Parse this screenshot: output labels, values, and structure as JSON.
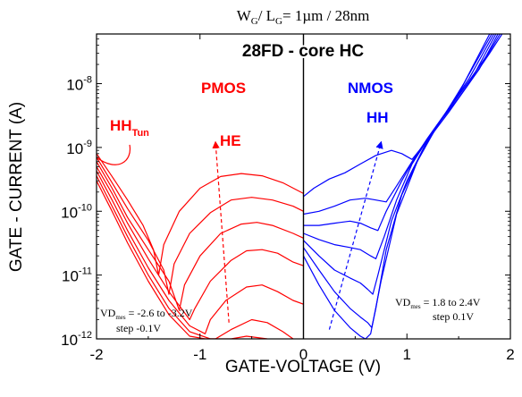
{
  "chart_data": {
    "type": "line",
    "title": {
      "main": "W",
      "sub1": "G",
      "mid": "/ L",
      "sub2": "G",
      "rest": "= 1µm / 28nm"
    },
    "xlabel": "GATE-VOLTAGE (V)",
    "ylabel": "GATE - CURRENT (A)",
    "xlim": [
      -2,
      2
    ],
    "ylim": [
      1e-12,
      6e-08
    ],
    "yscale": "log",
    "grid": false,
    "x_ticks": [
      {
        "value": -2,
        "label": "-2"
      },
      {
        "value": -1,
        "label": "-1"
      },
      {
        "value": 0,
        "label": "0"
      },
      {
        "value": 1,
        "label": "1"
      },
      {
        "value": 2,
        "label": "2"
      }
    ],
    "y_ticks": [
      {
        "exp": -12,
        "base": "10",
        "sup": "-12"
      },
      {
        "exp": -11,
        "base": "10",
        "sup": "-11"
      },
      {
        "exp": -10,
        "base": "10",
        "sup": "-10"
      },
      {
        "exp": -9,
        "base": "10",
        "sup": "-9"
      },
      {
        "exp": -8,
        "base": "10",
        "sup": "-8"
      }
    ],
    "colors": {
      "pmos": "#ff0000",
      "nmos": "#0000ff",
      "axis": "#000000"
    },
    "annotations": {
      "device": "28FD - core HC",
      "pmos": "PMOS",
      "nmos": "NMOS",
      "hh_tun": "HH",
      "hh_tun_sub": "Tun",
      "he": "HE",
      "hh": "HH",
      "pmos_box_1_pre": "VD",
      "pmos_box_1_sub": "mes",
      "pmos_box_1_post": " = -2.6 to -3.2V",
      "pmos_box_2": "step -0.1V",
      "nmos_box_1_pre": "VD",
      "nmos_box_1_sub": "mes",
      "nmos_box_1_post": " = 1.8 to 2.4V",
      "nmos_box_2": "step 0.1V"
    },
    "series": [
      {
        "device": "PMOS",
        "points": [
          [
            -2.0,
            8e-10
          ],
          [
            -1.85,
            3.5e-10
          ],
          [
            -1.7,
            1.5e-10
          ],
          [
            -1.55,
            6e-11
          ],
          [
            -1.45,
            2.5e-11
          ],
          [
            -1.4,
            1e-11
          ],
          [
            -1.35,
            3e-11
          ],
          [
            -1.2,
            1e-10
          ],
          [
            -1.0,
            2.3e-10
          ],
          [
            -0.8,
            3.5e-10
          ],
          [
            -0.6,
            3.9e-10
          ],
          [
            -0.4,
            3.6e-10
          ],
          [
            -0.2,
            2.8e-10
          ],
          [
            0.0,
            1.9e-10
          ]
        ]
      },
      {
        "device": "PMOS",
        "points": [
          [
            -2.0,
            7e-10
          ],
          [
            -1.85,
            2.8e-10
          ],
          [
            -1.7,
            1.1e-10
          ],
          [
            -1.5,
            3.5e-11
          ],
          [
            -1.35,
            1.2e-11
          ],
          [
            -1.3,
            5e-12
          ],
          [
            -1.25,
            1.5e-11
          ],
          [
            -1.1,
            4.5e-11
          ],
          [
            -0.9,
            9.5e-11
          ],
          [
            -0.7,
            1.5e-10
          ],
          [
            -0.5,
            1.65e-10
          ],
          [
            -0.3,
            1.5e-10
          ],
          [
            -0.1,
            1.2e-10
          ],
          [
            0.0,
            1e-10
          ]
        ]
      },
      {
        "device": "PMOS",
        "points": [
          [
            -2.0,
            6e-10
          ],
          [
            -1.85,
            2.3e-10
          ],
          [
            -1.7,
            8e-11
          ],
          [
            -1.5,
            2.5e-11
          ],
          [
            -1.3,
            8e-12
          ],
          [
            -1.2,
            2.8e-12
          ],
          [
            -1.15,
            7e-12
          ],
          [
            -1.0,
            2e-11
          ],
          [
            -0.8,
            4.5e-11
          ],
          [
            -0.6,
            6.3e-11
          ],
          [
            -0.45,
            6.7e-11
          ],
          [
            -0.3,
            6e-11
          ],
          [
            -0.1,
            4.5e-11
          ],
          [
            0.0,
            3.8e-11
          ]
        ]
      },
      {
        "device": "PMOS",
        "points": [
          [
            -2.0,
            5e-10
          ],
          [
            -1.85,
            1.9e-10
          ],
          [
            -1.7,
            6.5e-11
          ],
          [
            -1.5,
            1.8e-11
          ],
          [
            -1.3,
            5.5e-12
          ],
          [
            -1.1,
            2e-12
          ],
          [
            -1.05,
            3e-12
          ],
          [
            -0.9,
            8e-12
          ],
          [
            -0.7,
            1.7e-11
          ],
          [
            -0.55,
            2.4e-11
          ],
          [
            -0.4,
            2.5e-11
          ],
          [
            -0.25,
            2.2e-11
          ],
          [
            -0.1,
            1.6e-11
          ],
          [
            0.0,
            1.4e-11
          ]
        ]
      },
      {
        "device": "PMOS",
        "points": [
          [
            -2.0,
            4.3e-10
          ],
          [
            -1.85,
            1.5e-10
          ],
          [
            -1.7,
            5e-11
          ],
          [
            -1.5,
            1.3e-11
          ],
          [
            -1.3,
            4e-12
          ],
          [
            -1.1,
            1.6e-12
          ],
          [
            -0.95,
            1.2e-12
          ],
          [
            -0.9,
            2e-12
          ],
          [
            -0.75,
            4e-12
          ],
          [
            -0.55,
            6.5e-12
          ],
          [
            -0.4,
            7e-12
          ],
          [
            -0.25,
            5.5e-12
          ],
          [
            -0.1,
            4e-12
          ],
          [
            0.0,
            3.5e-12
          ]
        ]
      },
      {
        "device": "PMOS",
        "points": [
          [
            -2.0,
            3.6e-10
          ],
          [
            -1.85,
            1.2e-10
          ],
          [
            -1.7,
            4e-11
          ],
          [
            -1.5,
            1e-11
          ],
          [
            -1.3,
            3e-12
          ],
          [
            -1.1,
            1.3e-12
          ],
          [
            -0.9,
            1e-12
          ],
          [
            -0.85,
            1e-12
          ],
          [
            -0.7,
            1.4e-12
          ],
          [
            -0.5,
            2e-12
          ],
          [
            -0.35,
            1.8e-12
          ],
          [
            -0.2,
            1.3e-12
          ],
          [
            -0.1,
            1e-12
          ]
        ]
      },
      {
        "device": "PMOS",
        "points": [
          [
            -2.0,
            3e-10
          ],
          [
            -1.85,
            1e-10
          ],
          [
            -1.7,
            3.2e-11
          ],
          [
            -1.5,
            8e-12
          ],
          [
            -1.3,
            2.4e-12
          ],
          [
            -1.1,
            1.1e-12
          ],
          [
            -0.95,
            1e-12
          ],
          [
            -0.8,
            1e-12
          ],
          [
            -0.7,
            1e-12
          ],
          [
            -0.55,
            1.1e-12
          ],
          [
            -0.45,
            1.05e-12
          ],
          [
            -0.35,
            1e-12
          ]
        ]
      },
      {
        "device": "NMOS",
        "points": [
          [
            0.0,
            1.7e-10
          ],
          [
            0.1,
            2.3e-10
          ],
          [
            0.25,
            3.2e-10
          ],
          [
            0.4,
            4e-10
          ],
          [
            0.55,
            5.5e-10
          ],
          [
            0.7,
            7.5e-10
          ],
          [
            0.85,
            9e-10
          ],
          [
            0.95,
            8e-10
          ],
          [
            1.05,
            6.5e-10
          ],
          [
            1.2,
            1.3e-09
          ],
          [
            1.4,
            3.5e-09
          ],
          [
            1.6,
            1e-08
          ],
          [
            1.8,
            3e-08
          ],
          [
            1.92,
            6e-08
          ]
        ]
      },
      {
        "device": "NMOS",
        "points": [
          [
            0.0,
            9e-11
          ],
          [
            0.15,
            1e-10
          ],
          [
            0.3,
            1.2e-10
          ],
          [
            0.45,
            1.5e-10
          ],
          [
            0.6,
            1.6e-10
          ],
          [
            0.7,
            1.5e-10
          ],
          [
            0.8,
            1.4e-10
          ],
          [
            0.9,
            2.5e-10
          ],
          [
            1.05,
            6e-10
          ],
          [
            1.2,
            1.4e-09
          ],
          [
            1.4,
            4e-09
          ],
          [
            1.6,
            1.1e-08
          ],
          [
            1.8,
            3.2e-08
          ],
          [
            1.9,
            6e-08
          ]
        ]
      },
      {
        "device": "NMOS",
        "points": [
          [
            0.0,
            6e-11
          ],
          [
            0.15,
            6e-11
          ],
          [
            0.3,
            6.5e-11
          ],
          [
            0.45,
            7e-11
          ],
          [
            0.55,
            6.5e-11
          ],
          [
            0.65,
            5.5e-11
          ],
          [
            0.72,
            5e-11
          ],
          [
            0.8,
            1e-10
          ],
          [
            0.95,
            3e-10
          ],
          [
            1.1,
            8e-10
          ],
          [
            1.3,
            2.3e-09
          ],
          [
            1.5,
            6e-09
          ],
          [
            1.7,
            1.7e-08
          ],
          [
            1.88,
            6e-08
          ]
        ]
      },
      {
        "device": "NMOS",
        "points": [
          [
            0.0,
            4.5e-11
          ],
          [
            0.15,
            3.6e-11
          ],
          [
            0.3,
            3e-11
          ],
          [
            0.45,
            2.7e-11
          ],
          [
            0.55,
            2.5e-11
          ],
          [
            0.65,
            2e-11
          ],
          [
            0.7,
            1.8e-11
          ],
          [
            0.78,
            4e-11
          ],
          [
            0.9,
            1.5e-10
          ],
          [
            1.05,
            5.5e-10
          ],
          [
            1.25,
            1.8e-09
          ],
          [
            1.45,
            5e-09
          ],
          [
            1.65,
            1.4e-08
          ],
          [
            1.86,
            6e-08
          ]
        ]
      },
      {
        "device": "NMOS",
        "points": [
          [
            0.0,
            3.5e-11
          ],
          [
            0.15,
            2e-11
          ],
          [
            0.3,
            1.2e-11
          ],
          [
            0.45,
            9e-12
          ],
          [
            0.55,
            7.5e-12
          ],
          [
            0.62,
            6e-12
          ],
          [
            0.67,
            5e-12
          ],
          [
            0.72,
            1e-11
          ],
          [
            0.85,
            7e-11
          ],
          [
            1.0,
            3e-10
          ],
          [
            1.2,
            1.3e-09
          ],
          [
            1.4,
            4e-09
          ],
          [
            1.6,
            1.2e-08
          ],
          [
            1.84,
            6e-08
          ]
        ]
      },
      {
        "device": "NMOS",
        "points": [
          [
            0.0,
            2.7e-11
          ],
          [
            0.15,
            1.2e-11
          ],
          [
            0.3,
            5.5e-12
          ],
          [
            0.45,
            3e-12
          ],
          [
            0.55,
            2.2e-12
          ],
          [
            0.62,
            1.8e-12
          ],
          [
            0.66,
            1.5e-12
          ],
          [
            0.7,
            3e-12
          ],
          [
            0.8,
            2.5e-11
          ],
          [
            0.95,
            1.8e-10
          ],
          [
            1.15,
            9e-10
          ],
          [
            1.35,
            3e-09
          ],
          [
            1.55,
            1e-08
          ],
          [
            1.82,
            6e-08
          ]
        ]
      },
      {
        "device": "NMOS",
        "points": [
          [
            0.0,
            2e-11
          ],
          [
            0.15,
            7e-12
          ],
          [
            0.3,
            2.8e-12
          ],
          [
            0.45,
            1.5e-12
          ],
          [
            0.55,
            1.1e-12
          ],
          [
            0.6,
            1e-12
          ],
          [
            0.65,
            1.2e-12
          ],
          [
            0.75,
            8e-12
          ],
          [
            0.9,
            9e-11
          ],
          [
            1.1,
            6e-10
          ],
          [
            1.3,
            2.3e-09
          ],
          [
            1.5,
            7e-09
          ],
          [
            1.8,
            6e-08
          ]
        ]
      }
    ],
    "arrows": [
      {
        "device": "PMOS",
        "from": [
          -0.72,
          1.8e-12
        ],
        "to": [
          -0.85,
          1.2e-09
        ]
      },
      {
        "device": "NMOS",
        "from": [
          0.25,
          1.4e-12
        ],
        "to": [
          0.75,
          1.2e-09
        ]
      }
    ]
  }
}
